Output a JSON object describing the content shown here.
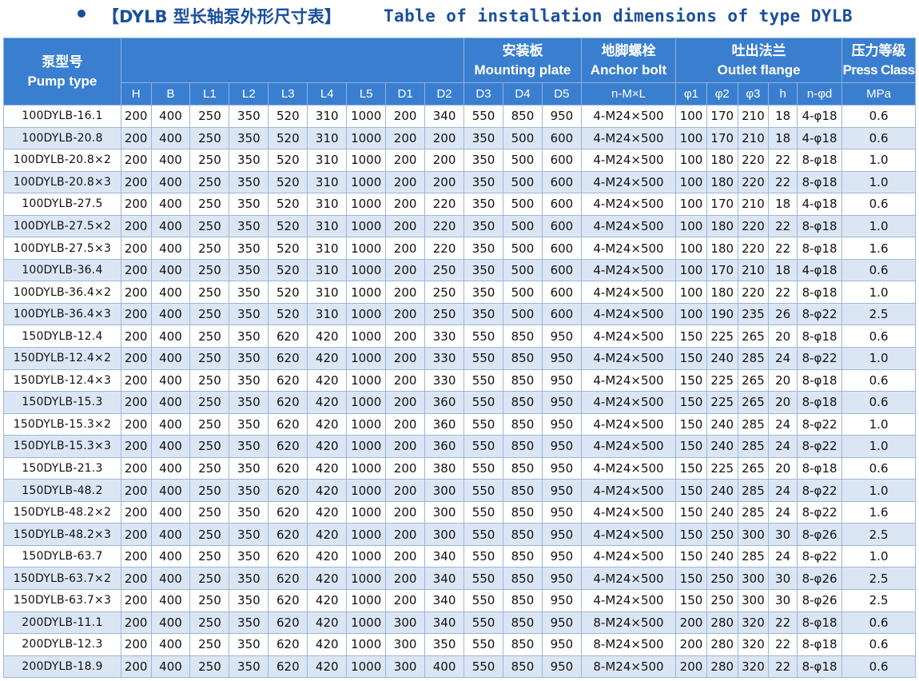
{
  "title": {
    "cn": "【DYLB 型长轴泵外形尺寸表】",
    "en": "Table of installation dimensions of type DYLB"
  },
  "header": {
    "pump_type_cn": "泵型号",
    "pump_type_en": "Pump type",
    "mounting_cn": "安装板",
    "mounting_en": "Mounting plate",
    "anchor_cn": "地脚螺栓",
    "anchor_en": "Anchor bolt",
    "outlet_cn": "吐出法兰",
    "outlet_en": "Outlet flange",
    "press_cn": "压力等级",
    "press_en": "Press Class",
    "columns": [
      "H",
      "B",
      "L1",
      "L2",
      "L3",
      "L4",
      "L5",
      "D1",
      "D2",
      "D3",
      "D4",
      "D5",
      "n-M×L",
      "φ1",
      "φ2",
      "φ3",
      "h",
      "n-φd",
      "MPa"
    ]
  },
  "rows": [
    [
      "100DYLB-16.1",
      "200",
      "400",
      "250",
      "350",
      "520",
      "310",
      "1000",
      "200",
      "340",
      "550",
      "850",
      "950",
      "4-M24×500",
      "100",
      "170",
      "210",
      "18",
      "4-φ18",
      "0.6"
    ],
    [
      "100DYLB-20.8",
      "200",
      "400",
      "250",
      "350",
      "520",
      "310",
      "1000",
      "200",
      "200",
      "350",
      "500",
      "600",
      "4-M24×500",
      "100",
      "170",
      "210",
      "18",
      "4-φ18",
      "0.6"
    ],
    [
      "100DYLB-20.8×2",
      "200",
      "400",
      "250",
      "350",
      "520",
      "310",
      "1000",
      "200",
      "200",
      "350",
      "500",
      "600",
      "4-M24×500",
      "100",
      "180",
      "220",
      "22",
      "8-φ18",
      "1.0"
    ],
    [
      "100DYLB-20.8×3",
      "200",
      "400",
      "250",
      "350",
      "520",
      "310",
      "1000",
      "200",
      "200",
      "350",
      "500",
      "600",
      "4-M24×500",
      "100",
      "180",
      "220",
      "22",
      "8-φ18",
      "1.0"
    ],
    [
      "100DYLB-27.5",
      "200",
      "400",
      "250",
      "350",
      "520",
      "310",
      "1000",
      "200",
      "220",
      "350",
      "500",
      "600",
      "4-M24×500",
      "100",
      "170",
      "210",
      "18",
      "4-φ18",
      "0.6"
    ],
    [
      "100DYLB-27.5×2",
      "200",
      "400",
      "250",
      "350",
      "520",
      "310",
      "1000",
      "200",
      "220",
      "350",
      "500",
      "600",
      "4-M24×500",
      "100",
      "180",
      "220",
      "22",
      "8-φ18",
      "1.0"
    ],
    [
      "100DYLB-27.5×3",
      "200",
      "400",
      "250",
      "350",
      "520",
      "310",
      "1000",
      "200",
      "220",
      "350",
      "500",
      "600",
      "4-M24×500",
      "100",
      "180",
      "220",
      "22",
      "8-φ18",
      "1.6"
    ],
    [
      "100DYLB-36.4",
      "200",
      "400",
      "250",
      "350",
      "520",
      "310",
      "1000",
      "200",
      "250",
      "350",
      "500",
      "600",
      "4-M24×500",
      "100",
      "170",
      "210",
      "18",
      "4-φ18",
      "0.6"
    ],
    [
      "100DYLB-36.4×2",
      "200",
      "400",
      "250",
      "350",
      "520",
      "310",
      "1000",
      "200",
      "250",
      "350",
      "500",
      "600",
      "4-M24×500",
      "100",
      "180",
      "220",
      "22",
      "8-φ18",
      "1.0"
    ],
    [
      "100DYLB-36.4×3",
      "200",
      "400",
      "250",
      "350",
      "520",
      "310",
      "1000",
      "200",
      "250",
      "350",
      "500",
      "600",
      "4-M24×500",
      "100",
      "190",
      "235",
      "26",
      "8-φ22",
      "2.5"
    ],
    [
      "150DYLB-12.4",
      "200",
      "400",
      "250",
      "350",
      "620",
      "420",
      "1000",
      "200",
      "330",
      "550",
      "850",
      "950",
      "4-M24×500",
      "150",
      "225",
      "265",
      "20",
      "8-φ18",
      "0.6"
    ],
    [
      "150DYLB-12.4×2",
      "200",
      "400",
      "250",
      "350",
      "620",
      "420",
      "1000",
      "200",
      "330",
      "550",
      "850",
      "950",
      "4-M24×500",
      "150",
      "240",
      "285",
      "24",
      "8-φ22",
      "1.0"
    ],
    [
      "150DYLB-12.4×3",
      "200",
      "400",
      "250",
      "350",
      "620",
      "420",
      "1000",
      "200",
      "330",
      "550",
      "850",
      "950",
      "4-M24×500",
      "150",
      "225",
      "265",
      "20",
      "8-φ18",
      "0.6"
    ],
    [
      "150DYLB-15.3",
      "200",
      "400",
      "250",
      "350",
      "620",
      "420",
      "1000",
      "200",
      "360",
      "550",
      "850",
      "950",
      "4-M24×500",
      "150",
      "225",
      "265",
      "20",
      "8-φ18",
      "0.6"
    ],
    [
      "150DYLB-15.3×2",
      "200",
      "400",
      "250",
      "350",
      "620",
      "420",
      "1000",
      "200",
      "360",
      "550",
      "850",
      "950",
      "4-M24×500",
      "150",
      "240",
      "285",
      "24",
      "8-φ22",
      "1.0"
    ],
    [
      "150DYLB-15.3×3",
      "200",
      "400",
      "250",
      "350",
      "620",
      "420",
      "1000",
      "200",
      "360",
      "550",
      "850",
      "950",
      "4-M24×500",
      "150",
      "240",
      "285",
      "24",
      "8-φ22",
      "1.0"
    ],
    [
      "150DYLB-21.3",
      "200",
      "400",
      "250",
      "350",
      "620",
      "420",
      "1000",
      "200",
      "380",
      "550",
      "850",
      "950",
      "4-M24×500",
      "150",
      "225",
      "265",
      "20",
      "8-φ18",
      "0.6"
    ],
    [
      "150DYLB-48.2",
      "200",
      "400",
      "250",
      "350",
      "620",
      "420",
      "1000",
      "200",
      "300",
      "550",
      "850",
      "950",
      "4-M24×500",
      "150",
      "240",
      "285",
      "24",
      "8-φ22",
      "1.0"
    ],
    [
      "150DYLB-48.2×2",
      "200",
      "400",
      "250",
      "350",
      "620",
      "420",
      "1000",
      "200",
      "300",
      "550",
      "850",
      "950",
      "4-M24×500",
      "150",
      "240",
      "285",
      "24",
      "8-φ22",
      "1.6"
    ],
    [
      "150DYLB-48.2×3",
      "200",
      "400",
      "250",
      "350",
      "620",
      "420",
      "1000",
      "200",
      "300",
      "550",
      "850",
      "950",
      "4-M24×500",
      "150",
      "250",
      "300",
      "30",
      "8-φ26",
      "2.5"
    ],
    [
      "150DYLB-63.7",
      "200",
      "400",
      "250",
      "350",
      "620",
      "420",
      "1000",
      "200",
      "340",
      "550",
      "850",
      "950",
      "4-M24×500",
      "150",
      "240",
      "285",
      "24",
      "8-φ22",
      "1.0"
    ],
    [
      "150DYLB-63.7×2",
      "200",
      "400",
      "250",
      "350",
      "620",
      "420",
      "1000",
      "200",
      "340",
      "550",
      "850",
      "950",
      "4-M24×500",
      "150",
      "250",
      "300",
      "30",
      "8-φ26",
      "2.5"
    ],
    [
      "150DYLB-63.7×3",
      "200",
      "400",
      "250",
      "350",
      "620",
      "420",
      "1000",
      "200",
      "340",
      "550",
      "850",
      "950",
      "4-M24×500",
      "150",
      "250",
      "300",
      "30",
      "8-φ26",
      "2.5"
    ],
    [
      "200DYLB-11.1",
      "200",
      "400",
      "250",
      "350",
      "620",
      "420",
      "1000",
      "300",
      "340",
      "550",
      "850",
      "950",
      "8-M24×500",
      "200",
      "280",
      "320",
      "22",
      "8-φ18",
      "0.6"
    ],
    [
      "200DYLB-12.3",
      "200",
      "400",
      "250",
      "350",
      "620",
      "420",
      "1000",
      "300",
      "350",
      "550",
      "850",
      "950",
      "8-M24×500",
      "200",
      "280",
      "320",
      "22",
      "8-φ18",
      "0.6"
    ],
    [
      "200DYLB-18.9",
      "200",
      "400",
      "250",
      "350",
      "620",
      "420",
      "1000",
      "300",
      "400",
      "550",
      "850",
      "950",
      "8-M24×500",
      "200",
      "280",
      "320",
      "22",
      "8-φ18",
      "0.6"
    ]
  ],
  "colors": {
    "header_bg": "#3a7fcf",
    "title_text": "#1a4f9c",
    "stripe_row": "#dbe6f5",
    "grid_line": "#9fb5d5"
  }
}
